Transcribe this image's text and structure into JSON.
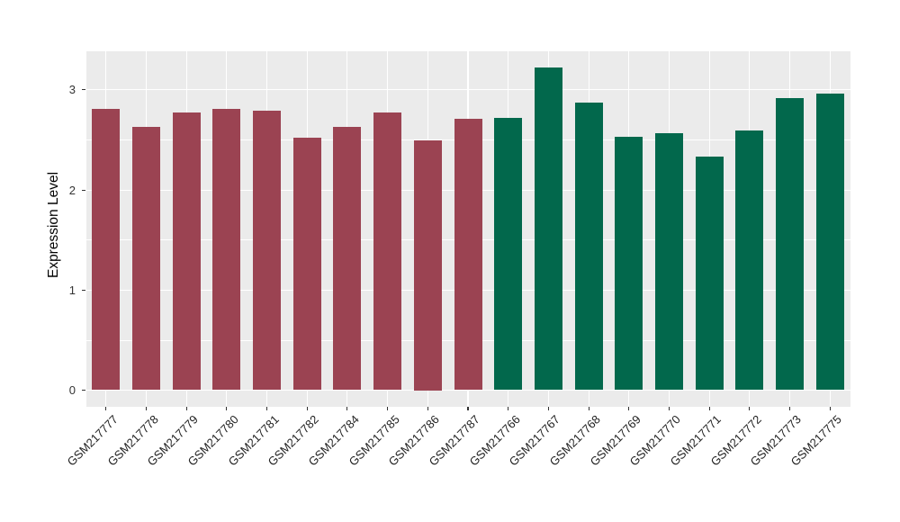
{
  "chart_data": {
    "type": "bar",
    "title": "",
    "xlabel": "",
    "ylabel": "Expression Level",
    "categories": [
      "GSM217777",
      "GSM217778",
      "GSM217779",
      "GSM217780",
      "GSM217781",
      "GSM217782",
      "GSM217784",
      "GSM217785",
      "GSM217786",
      "GSM217787",
      "GSM217766",
      "GSM217767",
      "GSM217768",
      "GSM217769",
      "GSM217770",
      "GSM217771",
      "GSM217772",
      "GSM217773",
      "GSM217775"
    ],
    "values": [
      2.81,
      2.63,
      2.77,
      2.81,
      2.79,
      2.52,
      2.63,
      2.77,
      2.5,
      2.71,
      2.72,
      3.22,
      2.87,
      2.53,
      2.57,
      2.33,
      2.59,
      2.92,
      2.96
    ],
    "groups": [
      "A",
      "A",
      "A",
      "A",
      "A",
      "A",
      "A",
      "A",
      "A",
      "A",
      "B",
      "B",
      "B",
      "B",
      "B",
      "B",
      "B",
      "B",
      "B"
    ],
    "group_colors": {
      "A": "#9B4352",
      "B": "#02684C"
    },
    "y_major_ticks": [
      0,
      1,
      2,
      3
    ],
    "y_minor_ticks": [
      0.5,
      1.5,
      2.5
    ],
    "ylim": [
      -0.16,
      3.38
    ],
    "grid": "white major and minor horizontal lines, white vertical line per category",
    "legend_position": "none",
    "panel_background": "#EBEBEB",
    "gridline_color": "#FFFFFF",
    "axis_text_color": "#333333",
    "bar_orientation": "vertical"
  }
}
